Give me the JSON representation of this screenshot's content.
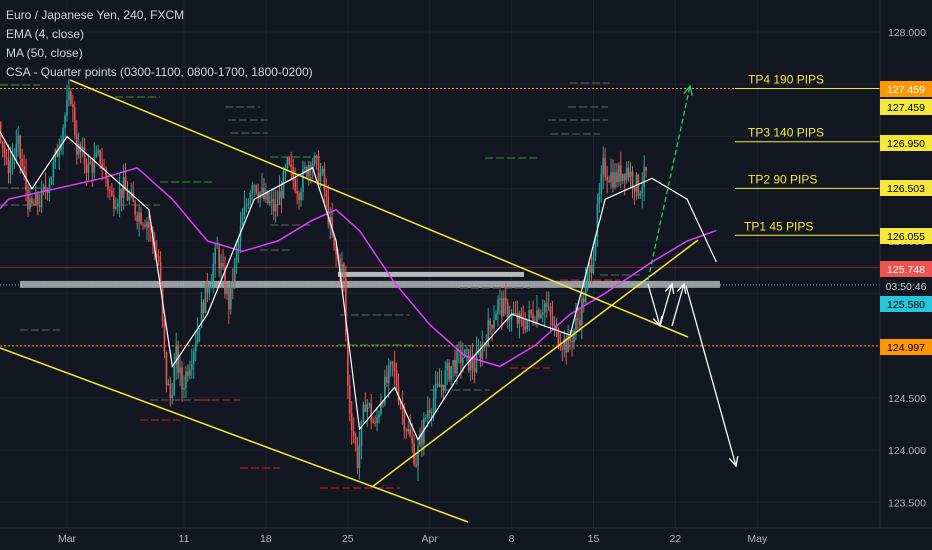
{
  "legend": {
    "symbol": "Euro / Japanese Yen, 240, FXCM",
    "ema": "EMA (4, close)",
    "ma": "MA (50, close)",
    "csa": "CSA - Quarter points (0300-1100, 0800-1700, 1800-0200)"
  },
  "colors": {
    "background": "#131722",
    "candle_up": "#26a69a",
    "candle_down": "#ef5350",
    "ema": "#ffffff",
    "ma": "#e040fb",
    "trendline": "#f5e83a",
    "tp_line": "#f5e83a",
    "projection_up": "#2ecc71",
    "projection_down": "#ffffff",
    "orange_line": "#ff9800",
    "cyan_line": "#26c6da"
  },
  "chart_data": {
    "type": "candlestick",
    "title": "Euro / Japanese Yen, 240, FXCM",
    "x_ticks": [
      "Mar",
      "11",
      "18",
      "25",
      "Apr",
      "8",
      "15",
      "22",
      "May"
    ],
    "y_ticks": [
      128.0,
      127.5,
      127.0,
      126.5,
      126.0,
      125.5,
      125.0,
      124.5,
      124.0,
      123.5
    ],
    "y_tick_labels": [
      "128.000",
      "",
      "",
      "",
      "126.000",
      "",
      "",
      "124.500",
      "124.000",
      "123.500"
    ],
    "ylim": [
      123.3,
      128.3
    ],
    "price_path": [
      {
        "day": -14,
        "p": 125.4
      },
      {
        "day": -12,
        "p": 126.0
      },
      {
        "day": -11,
        "p": 125.6
      },
      {
        "day": -9,
        "p": 126.5
      },
      {
        "day": -8,
        "p": 126.4
      },
      {
        "day": -7,
        "p": 127.0
      },
      {
        "day": -6,
        "p": 127.4
      },
      {
        "day": -5,
        "p": 126.7
      },
      {
        "day": -4,
        "p": 126.9
      },
      {
        "day": -3,
        "p": 126.3
      },
      {
        "day": -2,
        "p": 126.4
      },
      {
        "day": -1,
        "p": 126.7
      },
      {
        "day": 0,
        "p": 127.2
      },
      {
        "day": 0.5,
        "p": 127.4
      },
      {
        "day": 1,
        "p": 126.9
      },
      {
        "day": 2,
        "p": 126.7
      },
      {
        "day": 3,
        "p": 126.8
      },
      {
        "day": 4,
        "p": 126.4
      },
      {
        "day": 5,
        "p": 126.5
      },
      {
        "day": 6,
        "p": 126.3
      },
      {
        "day": 7,
        "p": 126.2
      },
      {
        "day": 8,
        "p": 125.8
      },
      {
        "day": 8.6,
        "p": 124.7
      },
      {
        "day": 9,
        "p": 124.5
      },
      {
        "day": 9.5,
        "p": 124.9
      },
      {
        "day": 10,
        "p": 124.6
      },
      {
        "day": 11,
        "p": 125.0
      },
      {
        "day": 12,
        "p": 125.5
      },
      {
        "day": 13,
        "p": 125.9
      },
      {
        "day": 14,
        "p": 125.4
      },
      {
        "day": 15,
        "p": 126.1
      },
      {
        "day": 16,
        "p": 126.6
      },
      {
        "day": 17,
        "p": 126.4
      },
      {
        "day": 18,
        "p": 126.3
      },
      {
        "day": 19,
        "p": 126.7
      },
      {
        "day": 20,
        "p": 126.5
      },
      {
        "day": 21,
        "p": 126.8
      },
      {
        "day": 22,
        "p": 126.6
      },
      {
        "day": 23,
        "p": 125.9
      },
      {
        "day": 23.8,
        "p": 125.7
      },
      {
        "day": 24.2,
        "p": 124.5
      },
      {
        "day": 25,
        "p": 123.9
      },
      {
        "day": 25.7,
        "p": 124.5
      },
      {
        "day": 26.5,
        "p": 124.2
      },
      {
        "day": 27,
        "p": 124.5
      },
      {
        "day": 28,
        "p": 124.8
      },
      {
        "day": 29,
        "p": 124.3
      },
      {
        "day": 30,
        "p": 123.9
      },
      {
        "day": 31,
        "p": 124.4
      },
      {
        "day": 32,
        "p": 124.6
      },
      {
        "day": 33,
        "p": 124.8
      },
      {
        "day": 34,
        "p": 124.9
      },
      {
        "day": 35,
        "p": 124.8
      },
      {
        "day": 36,
        "p": 125.1
      },
      {
        "day": 37,
        "p": 125.4
      },
      {
        "day": 38,
        "p": 125.3
      },
      {
        "day": 39,
        "p": 125.2
      },
      {
        "day": 40,
        "p": 125.3
      },
      {
        "day": 41,
        "p": 125.4
      },
      {
        "day": 42,
        "p": 125.1
      },
      {
        "day": 43,
        "p": 125.0
      },
      {
        "day": 44,
        "p": 125.3
      },
      {
        "day": 45,
        "p": 125.8
      },
      {
        "day": 46,
        "p": 126.7
      },
      {
        "day": 47,
        "p": 126.6
      },
      {
        "day": 48,
        "p": 126.7
      },
      {
        "day": 49,
        "p": 126.5
      },
      {
        "day": 50,
        "p": 126.7
      },
      {
        "day": 51,
        "p": 126.4
      },
      {
        "day": 52,
        "p": 126.6
      },
      {
        "day": 53,
        "p": 126.3
      },
      {
        "day": 54,
        "p": 125.9
      },
      {
        "day": 54.6,
        "p": 125.7
      },
      {
        "day": 55.2,
        "p": 125.8
      },
      {
        "day": 55.5,
        "p": 125.76
      }
    ],
    "ema_path": [
      {
        "day": -14,
        "p": 125.5
      },
      {
        "day": -8,
        "p": 126.3
      },
      {
        "day": -6,
        "p": 127.1
      },
      {
        "day": -3,
        "p": 126.5
      },
      {
        "day": 0,
        "p": 127.0
      },
      {
        "day": 3,
        "p": 126.7
      },
      {
        "day": 7,
        "p": 126.3
      },
      {
        "day": 9,
        "p": 124.8
      },
      {
        "day": 12,
        "p": 125.3
      },
      {
        "day": 16,
        "p": 126.4
      },
      {
        "day": 21,
        "p": 126.7
      },
      {
        "day": 23,
        "p": 126.0
      },
      {
        "day": 25,
        "p": 124.2
      },
      {
        "day": 28,
        "p": 124.6
      },
      {
        "day": 30,
        "p": 124.1
      },
      {
        "day": 34,
        "p": 124.8
      },
      {
        "day": 38,
        "p": 125.3
      },
      {
        "day": 43,
        "p": 125.1
      },
      {
        "day": 46,
        "p": 126.4
      },
      {
        "day": 50,
        "p": 126.6
      },
      {
        "day": 53,
        "p": 126.4
      },
      {
        "day": 55.5,
        "p": 125.8
      }
    ],
    "ma_path": [
      {
        "day": -14,
        "p": 125.6
      },
      {
        "day": -9,
        "p": 125.9
      },
      {
        "day": -5,
        "p": 126.4
      },
      {
        "day": -1,
        "p": 126.5
      },
      {
        "day": 3,
        "p": 126.6
      },
      {
        "day": 6,
        "p": 126.7
      },
      {
        "day": 9,
        "p": 126.4
      },
      {
        "day": 12,
        "p": 126.0
      },
      {
        "day": 15,
        "p": 125.9
      },
      {
        "day": 18,
        "p": 126.0
      },
      {
        "day": 21,
        "p": 126.2
      },
      {
        "day": 23,
        "p": 126.3
      },
      {
        "day": 25,
        "p": 126.1
      },
      {
        "day": 28,
        "p": 125.6
      },
      {
        "day": 31,
        "p": 125.2
      },
      {
        "day": 34,
        "p": 124.9
      },
      {
        "day": 37,
        "p": 124.8
      },
      {
        "day": 40,
        "p": 125.0
      },
      {
        "day": 43,
        "p": 125.3
      },
      {
        "day": 46,
        "p": 125.5
      },
      {
        "day": 50,
        "p": 125.8
      },
      {
        "day": 53,
        "p": 126.0
      },
      {
        "day": 55.5,
        "p": 126.1
      }
    ],
    "tp_levels": [
      {
        "label": "TP4 190 PIPS",
        "price": 127.459
      },
      {
        "label": "TP3 140 PIPS",
        "price": 126.95
      },
      {
        "label": "TP2 90 PIPS",
        "price": 126.503
      },
      {
        "label": "TP1 45 PIPS",
        "price": 126.055
      }
    ],
    "price_tags": [
      {
        "text": "127.459",
        "color": "#ff9800",
        "text_color": "#ffffff"
      },
      {
        "text": "127.459",
        "color": "#f5e83a",
        "text_color": "#000000"
      },
      {
        "text": "126.950",
        "color": "#f5e83a",
        "text_color": "#000000"
      },
      {
        "text": "126.503",
        "color": "#f5e83a",
        "text_color": "#000000"
      },
      {
        "text": "126.055",
        "color": "#f5e83a",
        "text_color": "#000000"
      },
      {
        "text": "125.748",
        "color": "#ef5350",
        "text_color": "#ffffff"
      },
      {
        "text": "03:50:46",
        "color": "#131722",
        "text_color": "#d1d4dc"
      },
      {
        "text": "125.580",
        "color": "#26c6da",
        "text_color": "#000000"
      },
      {
        "text": "124.997",
        "color": "#ff9800",
        "text_color": "#000000"
      }
    ],
    "levels": {
      "orange_top": 127.459,
      "orange_bottom": 124.997,
      "red_current": 125.748,
      "cyan_current": 125.58,
      "gray_zone": 125.58
    }
  }
}
